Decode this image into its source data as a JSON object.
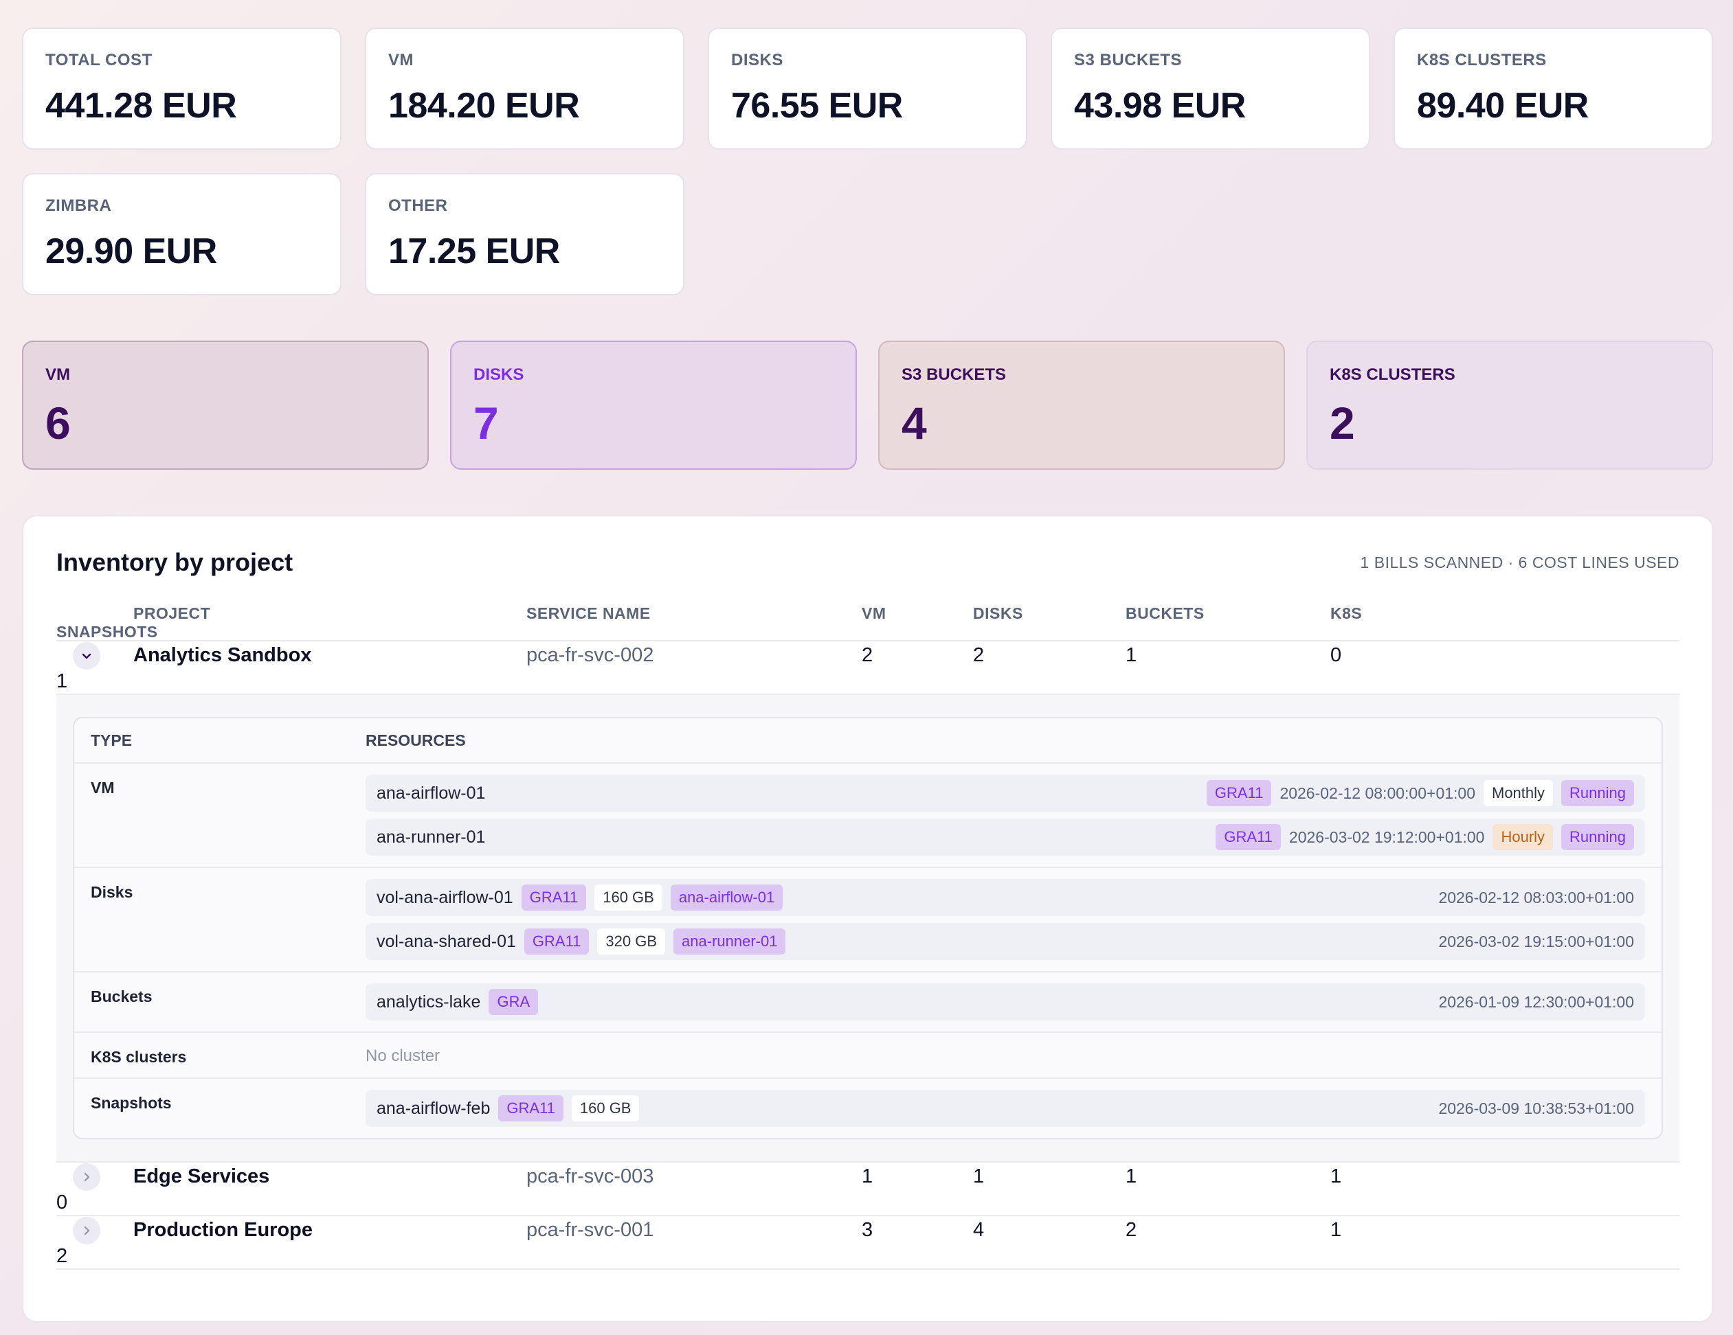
{
  "cost_cards": [
    {
      "label": "TOTAL COST",
      "value": "441.28 EUR"
    },
    {
      "label": "VM",
      "value": "184.20 EUR"
    },
    {
      "label": "DISKS",
      "value": "76.55 EUR"
    },
    {
      "label": "S3 BUCKETS",
      "value": "43.98 EUR"
    },
    {
      "label": "K8S CLUSTERS",
      "value": "89.40 EUR"
    },
    {
      "label": "ZIMBRA",
      "value": "29.90 EUR"
    },
    {
      "label": "OTHER",
      "value": "17.25 EUR"
    }
  ],
  "count_cards": [
    {
      "label": "VM",
      "value": "6"
    },
    {
      "label": "DISKS",
      "value": "7"
    },
    {
      "label": "S3 BUCKETS",
      "value": "4"
    },
    {
      "label": "K8S CLUSTERS",
      "value": "2"
    }
  ],
  "inventory": {
    "title": "Inventory by project",
    "meta": "1 BILLS SCANNED · 6 COST LINES USED",
    "columns": [
      "PROJECT",
      "SERVICE NAME",
      "VM",
      "DISKS",
      "BUCKETS",
      "K8S",
      "SNAPSHOTS"
    ],
    "projects": [
      {
        "name": "Analytics Sandbox",
        "service": "pca-fr-svc-002",
        "vm": "2",
        "disks": "2",
        "buckets": "1",
        "k8s": "0",
        "snapshots": "1",
        "expanded": true
      },
      {
        "name": "Edge Services",
        "service": "pca-fr-svc-003",
        "vm": "1",
        "disks": "1",
        "buckets": "1",
        "k8s": "1",
        "snapshots": "0",
        "expanded": false
      },
      {
        "name": "Production Europe",
        "service": "pca-fr-svc-001",
        "vm": "3",
        "disks": "4",
        "buckets": "2",
        "k8s": "1",
        "snapshots": "2",
        "expanded": false
      }
    ],
    "detail": {
      "columns": [
        "TYPE",
        "RESOURCES"
      ],
      "types": {
        "vm": "VM",
        "disks": "Disks",
        "buckets": "Buckets",
        "k8s": "K8S clusters",
        "snapshots": "Snapshots"
      },
      "vms": [
        {
          "name": "ana-airflow-01",
          "region": "GRA11",
          "date": "2026-02-12 08:00:00+01:00",
          "billing": "Monthly",
          "status": "Running"
        },
        {
          "name": "ana-runner-01",
          "region": "GRA11",
          "date": "2026-03-02 19:12:00+01:00",
          "billing": "Hourly",
          "status": "Running"
        }
      ],
      "disks": [
        {
          "name": "vol-ana-airflow-01",
          "region": "GRA11",
          "size": "160 GB",
          "attached": "ana-airflow-01",
          "date": "2026-02-12 08:03:00+01:00"
        },
        {
          "name": "vol-ana-shared-01",
          "region": "GRA11",
          "size": "320 GB",
          "attached": "ana-runner-01",
          "date": "2026-03-02 19:15:00+01:00"
        }
      ],
      "buckets": [
        {
          "name": "analytics-lake",
          "region": "GRA",
          "date": "2026-01-09 12:30:00+01:00"
        }
      ],
      "k8s_empty": "No cluster",
      "snapshots": [
        {
          "name": "ana-airflow-feb",
          "region": "GRA11",
          "size": "160 GB",
          "date": "2026-03-09 10:38:53+01:00"
        }
      ]
    }
  },
  "icons": {
    "expanded": "chevron-down-icon",
    "collapsed": "chevron-right-icon"
  }
}
